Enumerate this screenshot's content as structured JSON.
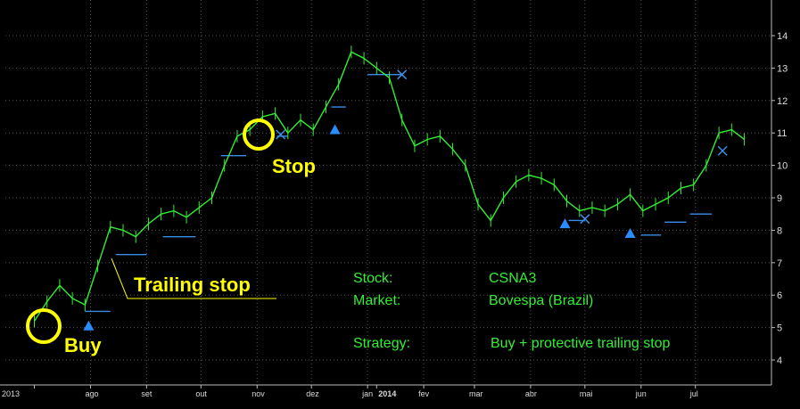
{
  "chart_data": {
    "type": "line",
    "ylim": [
      3.2,
      14.6
    ],
    "y_ticks": [
      4,
      5,
      6,
      7,
      8,
      9,
      10,
      11,
      12,
      13,
      14
    ],
    "x_labels": [
      "2013",
      "ago",
      "set",
      "out",
      "nov",
      "dez",
      "jan",
      "2014",
      "fev",
      "mar",
      "abr",
      "mai",
      "jun",
      "jul"
    ],
    "x_label_dates": [
      "2013-07-01",
      "2013-08-01",
      "2013-09-01",
      "2013-10-01",
      "2013-11-01",
      "2013-12-01",
      "2014-01-01",
      "2014-01-06",
      "2014-02-01",
      "2014-03-01",
      "2014-04-01",
      "2014-05-01",
      "2014-06-01",
      "2014-07-01"
    ],
    "grid": true,
    "series": [
      {
        "style": "price-bars",
        "color": "#33ee33",
        "x": [
          "2013-07-01",
          "2013-07-08",
          "2013-07-15",
          "2013-07-22",
          "2013-07-29",
          "2013-08-05",
          "2013-08-12",
          "2013-08-19",
          "2013-08-26",
          "2013-09-02",
          "2013-09-09",
          "2013-09-16",
          "2013-09-23",
          "2013-09-30",
          "2013-10-07",
          "2013-10-14",
          "2013-10-21",
          "2013-10-28",
          "2013-11-04",
          "2013-11-11",
          "2013-11-18",
          "2013-11-25",
          "2013-12-02",
          "2013-12-09",
          "2013-12-16",
          "2013-12-23",
          "2013-12-30",
          "2014-01-06",
          "2014-01-13",
          "2014-01-20",
          "2014-01-27",
          "2014-02-03",
          "2014-02-10",
          "2014-02-17",
          "2014-02-24",
          "2014-03-03",
          "2014-03-10",
          "2014-03-17",
          "2014-03-24",
          "2014-03-31",
          "2014-04-07",
          "2014-04-14",
          "2014-04-21",
          "2014-04-28",
          "2014-05-05",
          "2014-05-12",
          "2014-05-19",
          "2014-05-26",
          "2014-06-02",
          "2014-06-09",
          "2014-06-16",
          "2014-06-23",
          "2014-06-30",
          "2014-07-07",
          "2014-07-14",
          "2014-07-21",
          "2014-07-28"
        ],
        "values": [
          5.2,
          5.8,
          6.3,
          5.9,
          5.7,
          6.9,
          8.1,
          8.0,
          7.8,
          8.2,
          8.5,
          8.6,
          8.4,
          8.7,
          9.0,
          10.0,
          10.9,
          11.1,
          11.5,
          11.6,
          11.0,
          11.4,
          11.1,
          11.8,
          12.5,
          13.5,
          13.3,
          13.0,
          12.7,
          11.4,
          10.6,
          10.8,
          10.9,
          10.5,
          10.0,
          8.8,
          8.3,
          9.0,
          9.5,
          9.7,
          9.6,
          9.4,
          8.9,
          8.6,
          8.7,
          8.6,
          8.8,
          9.1,
          8.6,
          8.8,
          9.0,
          9.3,
          9.4,
          10.0,
          11.0,
          11.1,
          10.8
        ]
      },
      {
        "style": "trailing-stop-steps",
        "color": "#3a8ee6",
        "segments": [
          {
            "x": [
              "2013-07-29",
              "2013-08-12"
            ],
            "y": 5.5
          },
          {
            "x": [
              "2013-08-15",
              "2013-09-01"
            ],
            "y": 7.25
          },
          {
            "x": [
              "2013-09-10",
              "2013-09-28"
            ],
            "y": 7.8
          },
          {
            "x": [
              "2013-10-12",
              "2013-10-26"
            ],
            "y": 10.3
          },
          {
            "x": [
              "2013-11-12",
              "2013-11-18"
            ],
            "y": 10.9
          },
          {
            "x": [
              "2013-12-12",
              "2013-12-20"
            ],
            "y": 11.8
          },
          {
            "x": [
              "2014-01-01",
              "2014-01-20"
            ],
            "y": 12.8
          },
          {
            "x": [
              "2014-04-22",
              "2014-05-01"
            ],
            "y": 8.3
          },
          {
            "x": [
              "2014-06-01",
              "2014-06-12"
            ],
            "y": 7.85
          },
          {
            "x": [
              "2014-06-14",
              "2014-06-26"
            ],
            "y": 8.25
          },
          {
            "x": [
              "2014-06-28",
              "2014-07-10"
            ],
            "y": 8.5
          }
        ]
      }
    ],
    "buy_markers": [
      {
        "x": "2013-07-31",
        "y": 5.05
      },
      {
        "x": "2013-12-14",
        "y": 11.1
      },
      {
        "x": "2014-04-20",
        "y": 8.2
      },
      {
        "x": "2014-05-26",
        "y": 7.9
      }
    ],
    "stop_markers": [
      {
        "x": "2013-11-14",
        "y": 10.95
      },
      {
        "x": "2014-01-20",
        "y": 12.8
      },
      {
        "x": "2014-05-01",
        "y": 8.35
      },
      {
        "x": "2014-07-16",
        "y": 10.45
      }
    ]
  },
  "annotations": {
    "buy": "Buy",
    "stop": "Stop",
    "trailing_stop": "Trailing stop"
  },
  "info": {
    "stock_label": "Stock:",
    "stock_value": "CSNA3",
    "market_label": "Market:",
    "market_value": "Bovespa (Brazil)",
    "strategy_label": "Strategy:",
    "strategy_value": "Buy + protective trailing stop"
  },
  "colors": {
    "background": "#000000",
    "price": "#33ee33",
    "stop": "#3a8ee6",
    "highlight": "#ffff00",
    "grid": "#5a5a5a"
  }
}
